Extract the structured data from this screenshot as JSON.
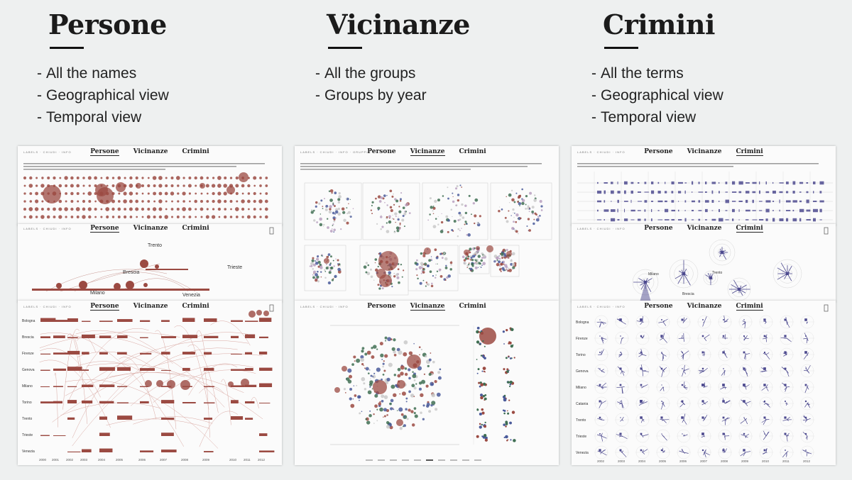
{
  "columns": [
    {
      "title": "Persone",
      "items": [
        "All the names",
        "Geographical view",
        "Temporal view"
      ]
    },
    {
      "title": "Vicinanze",
      "items": [
        "All the groups",
        "Groups by year"
      ]
    },
    {
      "title": "Crimini",
      "items": [
        "All the terms",
        "Geographical view",
        "Temporal view"
      ]
    }
  ],
  "nav": {
    "persone": "Persone",
    "vicinanze": "Vicinanze",
    "crimini": "Crimini"
  },
  "persone_geo": {
    "places": [
      "Trento",
      "Brescia",
      "Trieste",
      "Milano",
      "Venezia"
    ]
  },
  "persone_temporal": {
    "cities": [
      "Bologna",
      "Brescia",
      "Firenze",
      "Genova",
      "Milano",
      "Torino",
      "Trento",
      "Trieste",
      "Venezia"
    ],
    "years": [
      "2000",
      "2001",
      "2002",
      "2003",
      "2004",
      "2005",
      "2006",
      "2007",
      "2008",
      "2009",
      "2010",
      "2011",
      "2012"
    ]
  },
  "crimini_geo": {
    "places": [
      "Milano",
      "Trento",
      "Brescia"
    ]
  },
  "crimini_all": {
    "cities": [
      "Bologna",
      "Firenze",
      "Torino",
      "Genova",
      "Milano",
      "Catania",
      "Trento",
      "Trieste",
      "Venezia"
    ]
  },
  "colors": {
    "persone": "#9b4a42",
    "vicinanze_red": "#9b4a42",
    "vicinanze_blue": "#4a5a9a",
    "vicinanze_green": "#3f6e52",
    "crimini": "#4d4a8f"
  }
}
